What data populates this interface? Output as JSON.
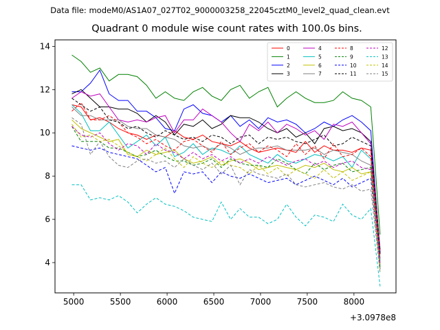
{
  "figure": {
    "suptitle": "Data file: modeM0/AS1A07_027T02_9000003258_22045cztM0_level2_quad_clean.evt"
  },
  "chart_data": {
    "type": "line",
    "title": "Quadrant 0 module wise count rates with 100.0s bins.",
    "xlabel": "",
    "ylabel": "",
    "x_offset_label": "+3.0978e8",
    "xlim": [
      4800,
      8450
    ],
    "ylim": [
      2.6,
      14.3
    ],
    "xticks": [
      5000,
      5500,
      6000,
      6500,
      7000,
      7500,
      8000
    ],
    "xtick_labels": [
      "5000",
      "5500",
      "6000",
      "6500",
      "7000",
      "7500",
      "8000"
    ],
    "yticks": [
      4,
      6,
      8,
      10,
      12,
      14
    ],
    "ytick_labels": [
      "4",
      "6",
      "8",
      "10",
      "12",
      "14"
    ],
    "grid": false,
    "legend_location": "top-right",
    "legend_columns": 4,
    "x": [
      4980,
      5080,
      5180,
      5280,
      5380,
      5480,
      5580,
      5680,
      5780,
      5880,
      5980,
      6080,
      6180,
      6280,
      6380,
      6480,
      6580,
      6680,
      6780,
      6880,
      6980,
      7080,
      7180,
      7280,
      7380,
      7480,
      7580,
      7680,
      7780,
      7880,
      7980,
      8080,
      8180,
      8280
    ],
    "series": [
      {
        "name": "0",
        "color": "#ff0000",
        "dash": false,
        "values": [
          11.3,
          11.2,
          10.6,
          10.7,
          10.5,
          10.2,
          10.0,
          9.9,
          9.7,
          9.9,
          9.8,
          10.1,
          9.8,
          9.7,
          9.9,
          9.6,
          9.5,
          9.4,
          9.6,
          9.3,
          9.1,
          9.2,
          9.3,
          9.2,
          9.1,
          9.6,
          9.1,
          9.4,
          9.2,
          9.2,
          9.1,
          9.3,
          9.2,
          4.2
        ]
      },
      {
        "name": "1",
        "color": "#008000",
        "dash": false,
        "values": [
          13.6,
          13.3,
          12.8,
          13.0,
          12.4,
          12.7,
          12.7,
          12.6,
          12.2,
          11.6,
          11.9,
          11.6,
          11.5,
          11.9,
          12.1,
          11.7,
          11.5,
          12.0,
          12.2,
          11.6,
          11.9,
          12.1,
          11.2,
          11.6,
          11.9,
          11.6,
          11.4,
          11.4,
          11.5,
          11.9,
          11.6,
          11.5,
          11.2,
          5.3
        ]
      },
      {
        "name": "2",
        "color": "#0000ff",
        "dash": false,
        "values": [
          11.9,
          11.9,
          12.3,
          12.9,
          11.8,
          11.5,
          11.5,
          11.0,
          11.0,
          10.7,
          10.2,
          10.1,
          11.1,
          11.3,
          10.9,
          10.8,
          10.5,
          10.8,
          10.3,
          10.6,
          10.2,
          10.7,
          10.5,
          10.6,
          10.4,
          10.0,
          10.2,
          10.5,
          10.3,
          10.6,
          10.8,
          10.5,
          10.1,
          4.4
        ]
      },
      {
        "name": "3",
        "color": "#000000",
        "dash": false,
        "values": [
          11.8,
          12.0,
          11.6,
          11.2,
          11.2,
          11.1,
          11.1,
          10.9,
          10.5,
          10.8,
          10.5,
          9.9,
          10.4,
          10.3,
          10.6,
          10.2,
          10.4,
          10.8,
          10.7,
          10.7,
          10.5,
          10.2,
          10.0,
          10.2,
          9.8,
          10.0,
          9.5,
          10.2,
          10.3,
          10.1,
          10.2,
          10.0,
          9.6,
          4.6
        ]
      },
      {
        "name": "4",
        "color": "#bf00bf",
        "dash": false,
        "values": [
          11.6,
          11.9,
          11.7,
          11.8,
          11.2,
          10.6,
          10.5,
          10.6,
          10.5,
          10.7,
          10.8,
          10.0,
          10.6,
          10.6,
          11.1,
          10.8,
          10.5,
          10.0,
          9.6,
          10.4,
          10.1,
          10.5,
          10.0,
          10.4,
          10.2,
          9.9,
          10.1,
          9.7,
          10.4,
          10.3,
          10.5,
          10.0,
          9.5,
          4.5
        ]
      },
      {
        "name": "5",
        "color": "#00bfbf",
        "dash": false,
        "values": [
          11.3,
          10.9,
          10.1,
          10.1,
          10.5,
          9.9,
          9.3,
          9.6,
          9.9,
          9.4,
          9.8,
          8.9,
          9.1,
          9.5,
          9.0,
          9.3,
          9.2,
          9.0,
          9.4,
          9.0,
          8.8,
          8.6,
          9.0,
          8.7,
          8.6,
          8.8,
          9.0,
          8.9,
          8.7,
          8.9,
          8.4,
          9.2,
          8.8,
          4.1
        ]
      },
      {
        "name": "6",
        "color": "#bfbf00",
        "dash": false,
        "values": [
          10.6,
          10.2,
          10.0,
          9.8,
          9.6,
          9.7,
          9.0,
          8.9,
          9.2,
          9.0,
          9.1,
          9.2,
          8.8,
          8.6,
          8.7,
          8.9,
          8.5,
          8.7,
          8.8,
          8.6,
          8.3,
          8.4,
          8.5,
          8.4,
          8.3,
          8.5,
          8.4,
          8.6,
          8.3,
          8.2,
          8.4,
          8.1,
          8.2,
          3.9
        ]
      },
      {
        "name": "7",
        "color": "#808080",
        "dash": false,
        "values": [
          11.2,
          10.8,
          10.8,
          10.6,
          10.6,
          10.6,
          10.3,
          10.2,
          10.2,
          9.9,
          9.8,
          9.7,
          9.4,
          9.3,
          9.4,
          9.2,
          9.5,
          9.3,
          9.0,
          9.2,
          9.3,
          9.3,
          9.4,
          9.2,
          9.2,
          9.2,
          9.3,
          9.0,
          9.2,
          9.1,
          9.0,
          8.7,
          8.5,
          4.0
        ]
      },
      {
        "name": "8",
        "color": "#ff0000",
        "dash": true,
        "values": [
          11.0,
          11.4,
          10.6,
          10.6,
          10.8,
          10.5,
          10.0,
          9.8,
          9.5,
          9.7,
          9.4,
          9.2,
          9.6,
          9.7,
          9.4,
          9.1,
          9.6,
          9.0,
          9.3,
          9.5,
          9.1,
          9.4,
          9.2,
          8.9,
          9.5,
          9.0,
          9.4,
          8.8,
          9.5,
          8.9,
          9.0,
          9.3,
          8.9,
          4.3
        ]
      },
      {
        "name": "9",
        "color": "#008000",
        "dash": true,
        "values": [
          10.3,
          9.6,
          9.6,
          9.6,
          9.3,
          9.3,
          9.1,
          8.9,
          9.0,
          9.2,
          8.9,
          8.7,
          8.7,
          8.5,
          8.6,
          8.8,
          8.4,
          8.8,
          8.6,
          8.5,
          8.5,
          8.4,
          8.8,
          8.6,
          8.3,
          8.1,
          8.6,
          8.3,
          8.5,
          8.6,
          8.2,
          8.3,
          8.4,
          3.8
        ]
      },
      {
        "name": "10",
        "color": "#0000ff",
        "dash": true,
        "values": [
          9.4,
          9.3,
          9.2,
          9.3,
          9.1,
          9.0,
          8.9,
          8.8,
          8.5,
          8.2,
          8.4,
          7.2,
          8.2,
          8.1,
          8.2,
          7.7,
          8.2,
          8.0,
          7.9,
          8.1,
          7.9,
          7.7,
          7.8,
          7.9,
          7.6,
          7.8,
          8.0,
          7.8,
          7.6,
          7.9,
          7.5,
          7.7,
          7.9,
          3.7
        ]
      },
      {
        "name": "11",
        "color": "#000000",
        "dash": true,
        "values": [
          11.6,
          11.3,
          11.0,
          11.2,
          10.6,
          10.5,
          10.2,
          10.3,
          10.0,
          9.8,
          10.1,
          9.9,
          9.7,
          9.8,
          9.6,
          9.9,
          9.8,
          9.5,
          9.8,
          9.9,
          9.5,
          9.8,
          9.7,
          9.8,
          9.6,
          9.5,
          9.7,
          9.9,
          9.4,
          9.5,
          9.8,
          9.6,
          9.4,
          4.4
        ]
      },
      {
        "name": "12",
        "color": "#bf00bf",
        "dash": true,
        "values": [
          10.3,
          9.9,
          9.8,
          10.0,
          9.5,
          9.2,
          9.5,
          9.4,
          9.0,
          9.5,
          9.2,
          9.1,
          8.8,
          9.1,
          8.8,
          9.0,
          8.7,
          8.9,
          8.6,
          8.8,
          8.6,
          8.9,
          8.7,
          8.5,
          8.7,
          8.8,
          8.5,
          8.7,
          8.4,
          8.6,
          8.7,
          8.4,
          8.3,
          3.9
        ]
      },
      {
        "name": "13",
        "color": "#00bfbf",
        "dash": true,
        "values": [
          7.6,
          7.6,
          6.9,
          7.0,
          6.9,
          7.1,
          6.8,
          6.3,
          6.7,
          7.0,
          6.7,
          6.6,
          6.4,
          6.1,
          6.0,
          5.9,
          6.8,
          6.0,
          6.5,
          6.1,
          6.1,
          5.8,
          6.0,
          6.7,
          6.1,
          5.7,
          6.2,
          6.1,
          5.9,
          6.7,
          6.2,
          6.0,
          6.5,
          2.9
        ]
      },
      {
        "name": "14",
        "color": "#bfbf00",
        "dash": true,
        "values": [
          10.4,
          9.8,
          9.9,
          9.6,
          9.7,
          9.4,
          9.1,
          8.9,
          8.7,
          9.0,
          9.3,
          8.8,
          8.4,
          8.9,
          8.6,
          8.4,
          8.7,
          8.5,
          8.4,
          8.1,
          8.5,
          8.1,
          8.4,
          8.0,
          8.3,
          8.1,
          7.9,
          8.3,
          7.9,
          8.2,
          7.8,
          8.0,
          8.2,
          3.6
        ]
      },
      {
        "name": "15",
        "color": "#808080",
        "dash": true,
        "values": [
          10.7,
          10.4,
          9.0,
          9.6,
          8.9,
          8.5,
          8.4,
          8.7,
          8.8,
          8.6,
          8.7,
          8.4,
          8.8,
          8.5,
          8.3,
          8.6,
          8.1,
          8.5,
          7.6,
          8.3,
          8.1,
          8.0,
          7.9,
          8.1,
          7.6,
          7.5,
          7.6,
          7.7,
          7.5,
          7.4,
          7.6,
          7.3,
          7.4,
          3.5
        ]
      }
    ]
  }
}
